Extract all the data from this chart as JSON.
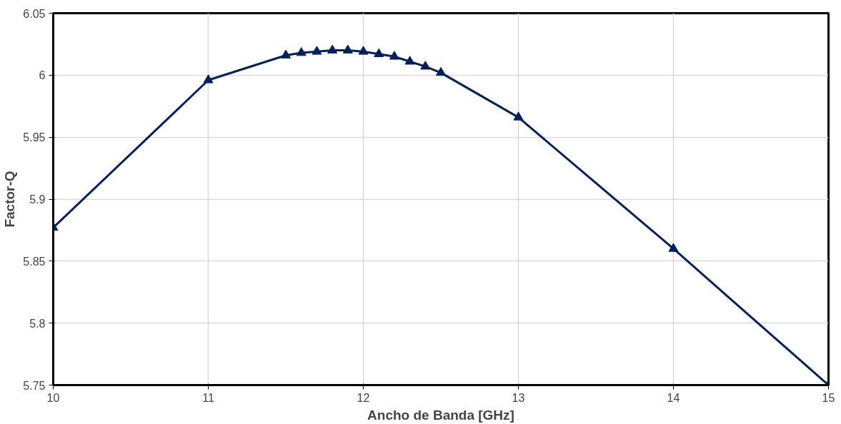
{
  "chart_data": {
    "type": "line",
    "xlabel": "Ancho de Banda [GHz]",
    "ylabel": "Factor-Q",
    "x": [
      10,
      11,
      11.5,
      11.6,
      11.7,
      11.8,
      11.9,
      12,
      12.1,
      12.2,
      12.3,
      12.4,
      12.5,
      13,
      14,
      15
    ],
    "series": [
      {
        "color": "#002060",
        "values": [
          5.877,
          5.996,
          6.016,
          6.018,
          6.019,
          6.02,
          6.02,
          6.019,
          6.017,
          6.015,
          6.011,
          6.007,
          6.002,
          5.966,
          5.86,
          5.75
        ]
      }
    ],
    "xlim": [
      10,
      15
    ],
    "xticks": [
      10,
      11,
      12,
      13,
      14,
      15
    ],
    "ylim": [
      5.75,
      6.05
    ],
    "yticks": [
      {
        "value": 5.75,
        "label": "5.75"
      },
      {
        "value": 5.8,
        "label": "5.8"
      },
      {
        "value": 5.85,
        "label": "5.85"
      },
      {
        "value": 5.9,
        "label": "5.9"
      },
      {
        "value": 5.95,
        "label": "5.95"
      },
      {
        "value": 6,
        "label": "6"
      },
      {
        "value": 6.05,
        "label": "6.05"
      }
    ],
    "grid": true,
    "marker": "triangle",
    "line_style": "solid"
  }
}
